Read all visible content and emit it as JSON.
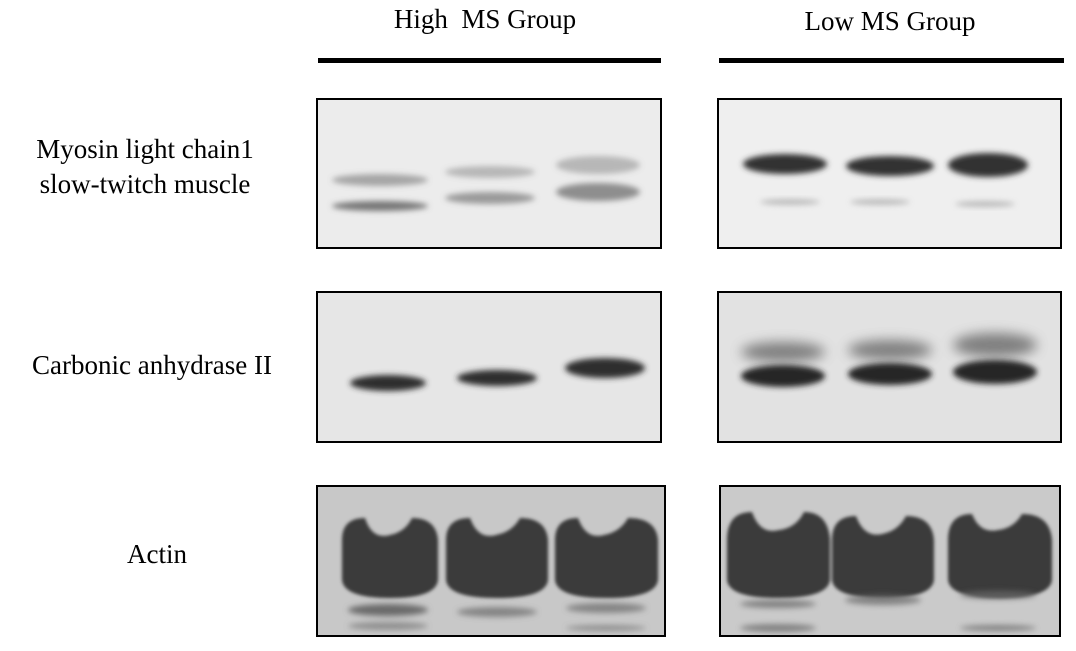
{
  "groups": [
    "High  MS Group",
    "Low MS Group"
  ],
  "rows": [
    [
      "Myosin light chain1",
      "slow-twitch muscle"
    ],
    [
      "Carbonic anhydrase II"
    ],
    [
      "Actin"
    ]
  ]
}
